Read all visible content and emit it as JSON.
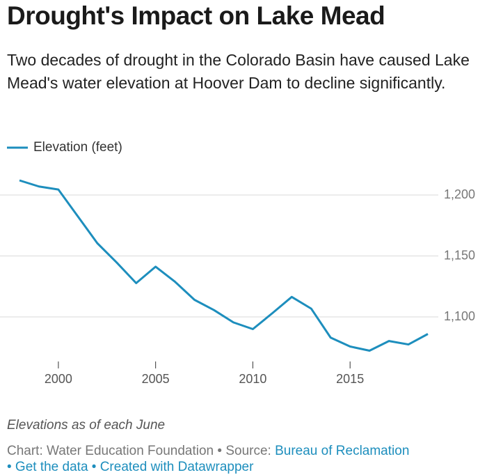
{
  "chart_data": {
    "type": "line",
    "title": "Drought's Impact on Lake Mead",
    "subtitle": "Two decades of drought in the Colorado Basin have caused Lake Mead's water elevation at Hoover Dam to decline significantly.",
    "x": [
      1998,
      1999,
      2000,
      2001,
      2002,
      2003,
      2004,
      2005,
      2006,
      2007,
      2008,
      2009,
      2010,
      2011,
      2012,
      2013,
      2014,
      2015,
      2016,
      2017,
      2018,
      2019
    ],
    "series": [
      {
        "name": "Elevation (feet)",
        "color": "#1d8ebd",
        "values": [
          1212,
          1207,
          1204.5,
          1182.5,
          1160.5,
          1144.6,
          1127.7,
          1141.2,
          1128.8,
          1114,
          1105.6,
          1095.5,
          1090,
          1103,
          1116.4,
          1106.8,
          1083,
          1075.7,
          1072.3,
          1080.2,
          1077.4,
          1086
        ]
      }
    ],
    "xlim": [
      1998,
      2019
    ],
    "xticks": [
      2000,
      2005,
      2010,
      2015
    ],
    "ylim": [
      1060,
      1220
    ],
    "yticks": [
      {
        "value": 1100,
        "label": "1,100"
      },
      {
        "value": 1150,
        "label": "1,150"
      },
      {
        "value": 1200,
        "label": "1,200"
      }
    ],
    "grid": true,
    "notes": "Elevations as of each June",
    "credit": "Chart: Water Education Foundation • Source:",
    "source_link": "Bureau of Reclamation",
    "footer_links": "• Get the data • Created with Datawrapper"
  }
}
